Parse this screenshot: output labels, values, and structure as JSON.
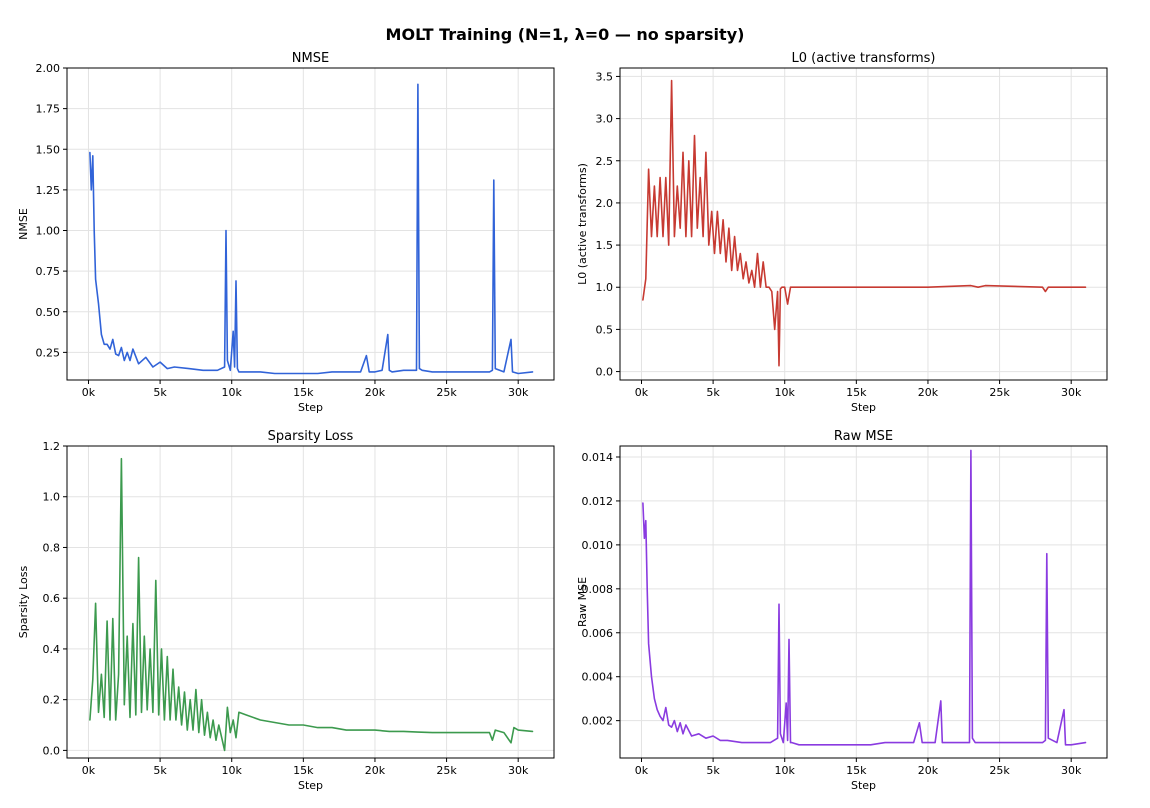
{
  "figure": {
    "suptitle": "MOLT Training  (N=1, λ=0 — no sparsity)"
  },
  "chart_data": [
    {
      "type": "line",
      "title": "NMSE",
      "xlabel": "Step",
      "ylabel": "NMSE",
      "color": "#3163d8",
      "xlim": [
        -1500,
        32500
      ],
      "ylim": [
        0.08,
        2.0
      ],
      "yticks": [
        0.25,
        0.5,
        0.75,
        1.0,
        1.25,
        1.5,
        1.75,
        2.0
      ],
      "ytick_labels": [
        "0.25",
        "0.50",
        "0.75",
        "1.00",
        "1.25",
        "1.50",
        "1.75",
        "2.00"
      ],
      "xticks": [
        0,
        5000,
        10000,
        15000,
        20000,
        25000,
        30000
      ],
      "xtick_labels": [
        "0k",
        "5k",
        "10k",
        "15k",
        "20k",
        "25k",
        "30k"
      ],
      "grid": true,
      "x": [
        100,
        200,
        300,
        400,
        500,
        700,
        900,
        1100,
        1300,
        1500,
        1700,
        1900,
        2100,
        2300,
        2500,
        2700,
        2900,
        3100,
        3500,
        4000,
        4500,
        5000,
        5500,
        6000,
        7000,
        8000,
        9000,
        9500,
        9600,
        9700,
        9900,
        10100,
        10200,
        10300,
        10400,
        10500,
        11000,
        12000,
        13000,
        14000,
        15000,
        16000,
        17000,
        18000,
        19000,
        19400,
        19600,
        20000,
        20500,
        20900,
        21000,
        21200,
        22000,
        22900,
        23000,
        23100,
        23300,
        24000,
        25000,
        26000,
        27000,
        28000,
        28200,
        28300,
        28400,
        29000,
        29500,
        29600,
        30000,
        31000
      ],
      "y": [
        1.48,
        1.25,
        1.46,
        1.0,
        0.7,
        0.55,
        0.36,
        0.3,
        0.3,
        0.27,
        0.33,
        0.24,
        0.23,
        0.28,
        0.2,
        0.25,
        0.2,
        0.27,
        0.18,
        0.22,
        0.16,
        0.19,
        0.15,
        0.16,
        0.15,
        0.14,
        0.14,
        0.16,
        1.0,
        0.2,
        0.14,
        0.38,
        0.16,
        0.69,
        0.15,
        0.13,
        0.13,
        0.13,
        0.12,
        0.12,
        0.12,
        0.12,
        0.13,
        0.13,
        0.13,
        0.23,
        0.13,
        0.13,
        0.14,
        0.36,
        0.14,
        0.13,
        0.14,
        0.14,
        1.9,
        0.15,
        0.14,
        0.13,
        0.13,
        0.13,
        0.13,
        0.13,
        0.14,
        1.31,
        0.15,
        0.13,
        0.33,
        0.13,
        0.12,
        0.13
      ]
    },
    {
      "type": "line",
      "title": "L0 (active transforms)",
      "xlabel": "Step",
      "ylabel": "L0 (active transforms)",
      "color": "#c73a32",
      "xlim": [
        -1500,
        32500
      ],
      "ylim": [
        -0.1,
        3.6
      ],
      "yticks": [
        0.0,
        0.5,
        1.0,
        1.5,
        2.0,
        2.5,
        3.0,
        3.5
      ],
      "ytick_labels": [
        "0.0",
        "0.5",
        "1.0",
        "1.5",
        "2.0",
        "2.5",
        "3.0",
        "3.5"
      ],
      "xticks": [
        0,
        5000,
        10000,
        15000,
        20000,
        25000,
        30000
      ],
      "xtick_labels": [
        "0k",
        "5k",
        "10k",
        "15k",
        "20k",
        "25k",
        "30k"
      ],
      "grid": true,
      "x": [
        100,
        300,
        500,
        700,
        900,
        1100,
        1300,
        1500,
        1700,
        1900,
        2100,
        2300,
        2500,
        2700,
        2900,
        3100,
        3300,
        3500,
        3700,
        3900,
        4100,
        4300,
        4500,
        4700,
        4900,
        5100,
        5300,
        5500,
        5700,
        5900,
        6100,
        6300,
        6500,
        6700,
        6900,
        7100,
        7300,
        7500,
        7700,
        7900,
        8100,
        8300,
        8500,
        8700,
        8900,
        9100,
        9300,
        9500,
        9600,
        9700,
        9800,
        10000,
        10200,
        10400,
        10600,
        12000,
        15000,
        20000,
        23000,
        23500,
        24000,
        28000,
        28200,
        28400,
        31000
      ],
      "y": [
        0.85,
        1.1,
        2.4,
        1.6,
        2.2,
        1.6,
        2.3,
        1.6,
        2.3,
        1.5,
        3.45,
        1.6,
        2.2,
        1.7,
        2.6,
        1.6,
        2.5,
        1.6,
        2.8,
        1.7,
        2.3,
        1.6,
        2.6,
        1.5,
        1.9,
        1.4,
        1.9,
        1.4,
        1.8,
        1.3,
        1.7,
        1.2,
        1.6,
        1.2,
        1.4,
        1.1,
        1.3,
        1.05,
        1.2,
        1.0,
        1.4,
        1.0,
        1.3,
        1.0,
        1.0,
        0.95,
        0.5,
        0.95,
        0.07,
        0.98,
        1.0,
        1.0,
        0.8,
        1.0,
        1.0,
        1.0,
        1.0,
        1.0,
        1.02,
        1.0,
        1.02,
        1.0,
        0.95,
        1.0,
        1.0
      ]
    },
    {
      "type": "line",
      "title": "Sparsity Loss",
      "xlabel": "Step",
      "ylabel": "Sparsity Loss",
      "color": "#3c9a4e",
      "xlim": [
        -1500,
        32500
      ],
      "ylim": [
        -0.03,
        1.2
      ],
      "yticks": [
        0.0,
        0.2,
        0.4,
        0.6,
        0.8,
        1.0,
        1.2
      ],
      "ytick_labels": [
        "0.0",
        "0.2",
        "0.4",
        "0.6",
        "0.8",
        "1.0",
        "1.2"
      ],
      "xticks": [
        0,
        5000,
        10000,
        15000,
        20000,
        25000,
        30000
      ],
      "xtick_labels": [
        "0k",
        "5k",
        "10k",
        "15k",
        "20k",
        "25k",
        "30k"
      ],
      "grid": true,
      "x": [
        100,
        300,
        500,
        700,
        900,
        1100,
        1300,
        1500,
        1700,
        1900,
        2100,
        2300,
        2500,
        2700,
        2900,
        3100,
        3300,
        3500,
        3700,
        3900,
        4100,
        4300,
        4500,
        4700,
        4900,
        5100,
        5300,
        5500,
        5700,
        5900,
        6100,
        6300,
        6500,
        6700,
        6900,
        7100,
        7300,
        7500,
        7700,
        7900,
        8100,
        8300,
        8500,
        8700,
        8900,
        9100,
        9300,
        9500,
        9700,
        9900,
        10100,
        10300,
        10500,
        11000,
        12000,
        13000,
        14000,
        15000,
        16000,
        17000,
        18000,
        19000,
        20000,
        21000,
        22000,
        23000,
        24000,
        25000,
        26000,
        27000,
        28000,
        28200,
        28400,
        29000,
        29500,
        29700,
        30000,
        31000
      ],
      "y": [
        0.12,
        0.28,
        0.58,
        0.15,
        0.3,
        0.13,
        0.51,
        0.12,
        0.52,
        0.12,
        0.3,
        1.15,
        0.18,
        0.45,
        0.13,
        0.5,
        0.14,
        0.76,
        0.15,
        0.45,
        0.16,
        0.4,
        0.15,
        0.67,
        0.14,
        0.4,
        0.12,
        0.37,
        0.12,
        0.32,
        0.12,
        0.25,
        0.1,
        0.23,
        0.08,
        0.2,
        0.08,
        0.24,
        0.07,
        0.2,
        0.06,
        0.15,
        0.05,
        0.12,
        0.04,
        0.1,
        0.05,
        0.0,
        0.17,
        0.07,
        0.12,
        0.05,
        0.15,
        0.14,
        0.12,
        0.11,
        0.1,
        0.1,
        0.09,
        0.09,
        0.08,
        0.08,
        0.08,
        0.075,
        0.075,
        0.072,
        0.07,
        0.07,
        0.07,
        0.07,
        0.07,
        0.04,
        0.08,
        0.07,
        0.03,
        0.09,
        0.08,
        0.075
      ]
    },
    {
      "type": "line",
      "title": "Raw MSE",
      "xlabel": "Step",
      "ylabel": "Raw MSE",
      "color": "#8a3be0",
      "xlim": [
        -1500,
        32500
      ],
      "ylim": [
        0.0003,
        0.0145
      ],
      "yticks": [
        0.002,
        0.004,
        0.006,
        0.008,
        0.01,
        0.012,
        0.014
      ],
      "ytick_labels": [
        "0.002",
        "0.004",
        "0.006",
        "0.008",
        "0.010",
        "0.012",
        "0.014"
      ],
      "xticks": [
        0,
        5000,
        10000,
        15000,
        20000,
        25000,
        30000
      ],
      "xtick_labels": [
        "0k",
        "5k",
        "10k",
        "15k",
        "20k",
        "25k",
        "30k"
      ],
      "grid": true,
      "x": [
        100,
        200,
        300,
        400,
        500,
        700,
        900,
        1100,
        1300,
        1500,
        1700,
        1900,
        2100,
        2300,
        2500,
        2700,
        2900,
        3100,
        3500,
        4000,
        4500,
        5000,
        5500,
        6000,
        7000,
        8000,
        9000,
        9500,
        9600,
        9700,
        9900,
        10100,
        10200,
        10300,
        10400,
        10500,
        11000,
        12000,
        13000,
        14000,
        15000,
        16000,
        17000,
        18000,
        19000,
        19400,
        19600,
        20000,
        20500,
        20900,
        21000,
        21200,
        22000,
        22900,
        23000,
        23100,
        23300,
        24000,
        25000,
        26000,
        27000,
        28000,
        28200,
        28300,
        28400,
        29000,
        29500,
        29600,
        30000,
        31000
      ],
      "y": [
        0.0119,
        0.0103,
        0.0111,
        0.008,
        0.0055,
        0.004,
        0.003,
        0.0025,
        0.0022,
        0.002,
        0.0026,
        0.0018,
        0.0017,
        0.002,
        0.0015,
        0.0019,
        0.0014,
        0.0018,
        0.0013,
        0.0014,
        0.0012,
        0.0013,
        0.0011,
        0.0011,
        0.001,
        0.001,
        0.001,
        0.0012,
        0.0073,
        0.0014,
        0.001,
        0.0028,
        0.0011,
        0.0057,
        0.001,
        0.001,
        0.0009,
        0.0009,
        0.0009,
        0.0009,
        0.0009,
        0.0009,
        0.001,
        0.001,
        0.001,
        0.0019,
        0.001,
        0.001,
        0.001,
        0.0029,
        0.001,
        0.001,
        0.001,
        0.001,
        0.0143,
        0.0012,
        0.001,
        0.001,
        0.001,
        0.001,
        0.001,
        0.001,
        0.0011,
        0.0096,
        0.0012,
        0.001,
        0.0025,
        0.0009,
        0.0009,
        0.001
      ]
    }
  ]
}
